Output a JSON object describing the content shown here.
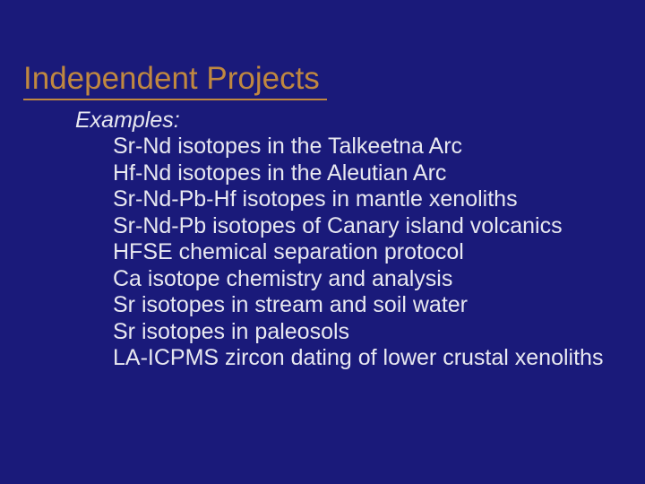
{
  "slide": {
    "background_color": "#1a1a7a",
    "title_color": "#c08840",
    "text_color": "#e8e8f0",
    "title_fontsize": 35,
    "body_fontsize": 25,
    "title": "Independent Projects",
    "examples_label": "Examples:",
    "examples": [
      "Sr-Nd isotopes in the Talkeetna Arc",
      "Hf-Nd isotopes in the Aleutian Arc",
      "Sr-Nd-Pb-Hf isotopes in mantle xenoliths",
      "Sr-Nd-Pb isotopes of Canary island volcanics",
      "HFSE chemical separation protocol",
      "Ca isotope chemistry and analysis",
      "Sr isotopes in stream and soil water",
      "Sr isotopes in paleosols",
      "LA-ICPMS zircon dating of lower crustal xenoliths"
    ]
  }
}
